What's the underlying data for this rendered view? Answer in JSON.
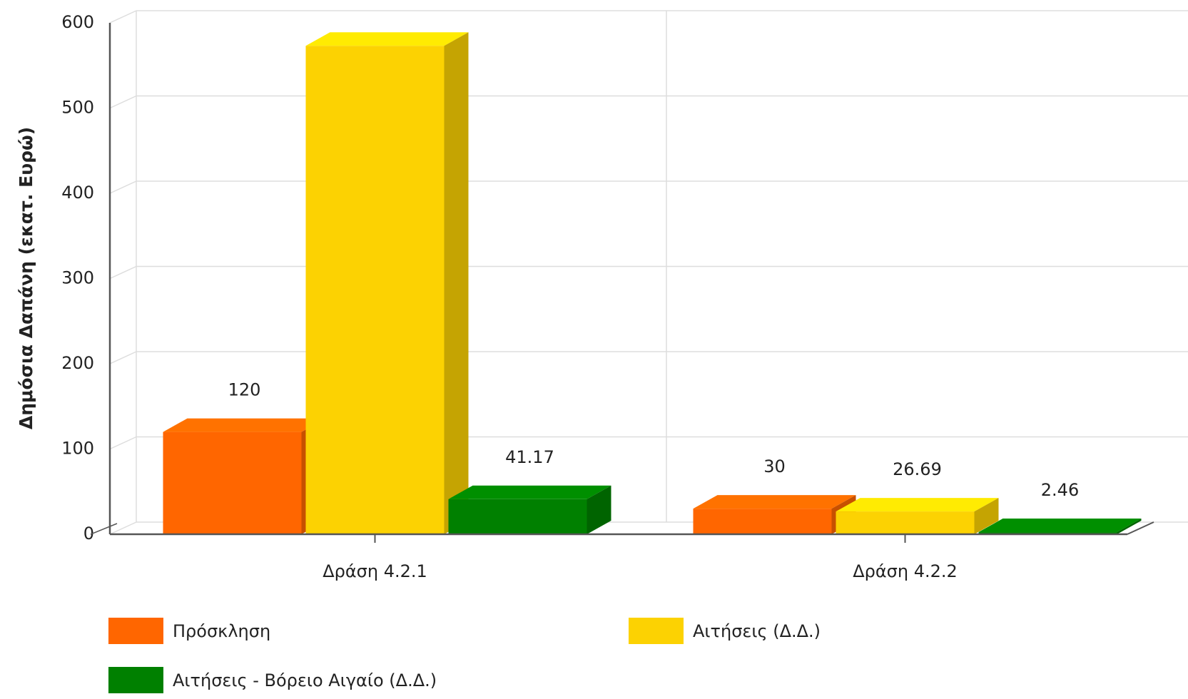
{
  "chart_data": {
    "type": "bar3d",
    "y_axis_label": "Δημόσια Δαπάνη (εκατ. Ευρώ)",
    "categories": [
      "Δράση 4.2.1",
      "Δράση 4.2.2"
    ],
    "series": [
      {
        "name": "Πρόσκληση",
        "color": "#ff6600",
        "values": [
          120,
          30
        ]
      },
      {
        "name": "Αιτήσεις (Δ.Δ.)",
        "color": "#fcd202",
        "values": [
          573,
          26.69
        ],
        "value_labels": [
          null,
          "26.69"
        ]
      },
      {
        "name": "Αιτήσεις  - Βόρειο Αιγαίο (Δ.Δ.)",
        "color": "#008000",
        "values": [
          41.17,
          2.46
        ]
      }
    ],
    "ylim": [
      0,
      600
    ],
    "yticks": [
      0,
      100,
      200,
      300,
      400,
      500,
      600
    ],
    "grid": true,
    "legend": "bottom"
  }
}
